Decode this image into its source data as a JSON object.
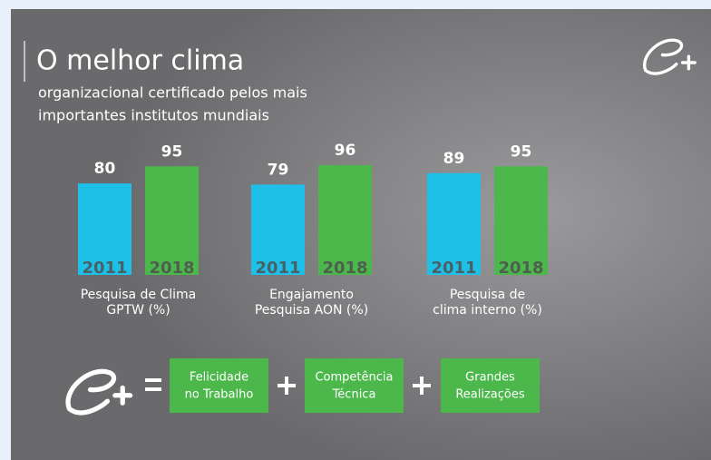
{
  "header": {
    "title": "O melhor clima",
    "subtitle": [
      "organizacional certificado pelos mais",
      "importantes institutos mundiais"
    ]
  },
  "chart_data": [
    {
      "type": "bar",
      "categories": [
        "2011",
        "2018"
      ],
      "values": [
        80,
        95
      ],
      "colors": [
        "#1ec0e8",
        "#4cb74a"
      ],
      "ylim": [
        0,
        100
      ],
      "xlabel": [
        "Pesquisa de Clima",
        "GPTW (%)"
      ]
    },
    {
      "type": "bar",
      "categories": [
        "2011",
        "2018"
      ],
      "values": [
        79,
        96
      ],
      "colors": [
        "#1ec0e8",
        "#4cb74a"
      ],
      "ylim": [
        0,
        100
      ],
      "xlabel": [
        "Engajamento",
        "Pesquisa AON (%)"
      ]
    },
    {
      "type": "bar",
      "categories": [
        "2011",
        "2018"
      ],
      "values": [
        89,
        95
      ],
      "colors": [
        "#1ec0e8",
        "#4cb74a"
      ],
      "ylim": [
        0,
        100
      ],
      "xlabel": [
        "Pesquisa de",
        "clima interno (%)"
      ]
    }
  ],
  "formula": {
    "terms": [
      [
        "Felicidade",
        "no Trabalho"
      ],
      [
        "Competência",
        "Técnica"
      ],
      [
        "Grandes",
        "Realizações"
      ]
    ]
  }
}
